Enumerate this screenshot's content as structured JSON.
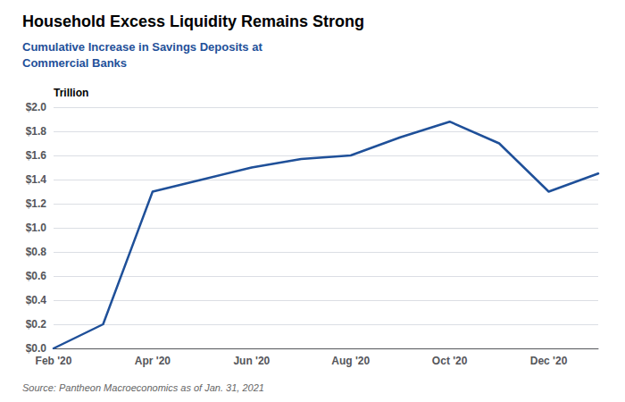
{
  "chart_data": {
    "type": "line",
    "title": "Household Excess Liquidity Remains Strong",
    "subtitle": "Cumulative Increase in Savings Deposits at\nCommercial Banks",
    "ylabel": "Trillion",
    "annotations": [
      "Source: Pantheon Macroeconomics as of Jan. 31, 2021"
    ],
    "categories": [
      "Feb '20",
      null,
      "Apr '20",
      null,
      "Jun '20",
      null,
      "Aug '20",
      null,
      "Oct '20",
      null,
      "Dec '20",
      null
    ],
    "values": [
      0.0,
      0.2,
      1.3,
      1.4,
      1.5,
      1.57,
      1.6,
      1.75,
      1.88,
      1.7,
      1.3,
      1.45
    ],
    "color": "#1f5099",
    "ylim": [
      0,
      2.0
    ],
    "yticks": [
      {
        "value": 0.0,
        "label": "$0.0"
      },
      {
        "value": 0.2,
        "label": "$0.2"
      },
      {
        "value": 0.4,
        "label": "$0.4"
      },
      {
        "value": 0.6,
        "label": "$0.6"
      },
      {
        "value": 0.8,
        "label": "$0.8"
      },
      {
        "value": 1.0,
        "label": "$1.0"
      },
      {
        "value": 1.2,
        "label": "$1.2"
      },
      {
        "value": 1.4,
        "label": "$1.4"
      },
      {
        "value": 1.6,
        "label": "$1.6"
      },
      {
        "value": 1.8,
        "label": "$1.8"
      },
      {
        "value": 2.0,
        "label": "$2.0"
      }
    ],
    "grid": true
  }
}
